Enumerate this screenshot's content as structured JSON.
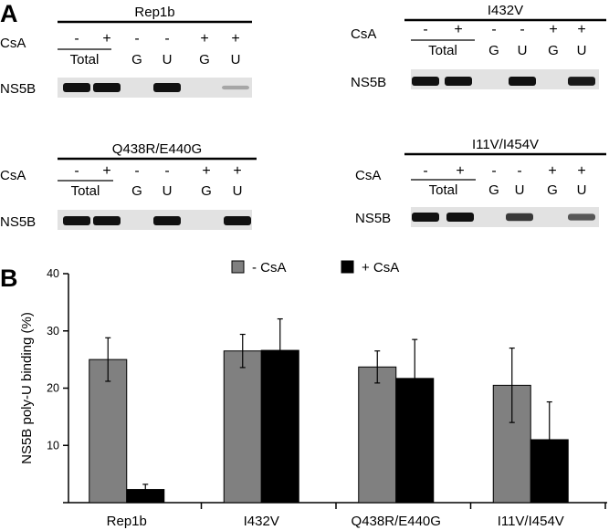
{
  "panel_a": {
    "letter": "A",
    "blots": [
      {
        "title": "Rep1b",
        "row_label": "CsA",
        "band_label": "NS5B",
        "total_label": "Total",
        "signs": [
          "-",
          "+",
          "-",
          "-",
          "+",
          "+"
        ],
        "lanes": [
          "",
          "",
          "G",
          "U",
          "G",
          "U"
        ],
        "bands": [
          1,
          1,
          0,
          1,
          0,
          0.05
        ]
      },
      {
        "title": "I432V",
        "row_label": "CsA",
        "band_label": "NS5B",
        "total_label": "Total",
        "signs": [
          "-",
          "+",
          "-",
          "-",
          "+",
          "+"
        ],
        "lanes": [
          "",
          "",
          "G",
          "U",
          "G",
          "U"
        ],
        "bands": [
          1,
          1,
          0,
          1,
          0,
          0.95
        ]
      },
      {
        "title": "Q438R/E440G",
        "row_label": "CsA",
        "band_label": "NS5B",
        "total_label": "Total",
        "signs": [
          "-",
          "+",
          "-",
          "-",
          "+",
          "+"
        ],
        "lanes": [
          "",
          "",
          "G",
          "U",
          "G",
          "U"
        ],
        "bands": [
          1,
          1,
          0,
          1,
          0,
          1
        ]
      },
      {
        "title": "I11V/I454V",
        "row_label": "CsA",
        "band_label": "NS5B",
        "total_label": "Total",
        "signs": [
          "-",
          "+",
          "-",
          "-",
          "+",
          "+"
        ],
        "lanes": [
          "",
          "",
          "G",
          "U",
          "G",
          "U"
        ],
        "bands": [
          1,
          1,
          0,
          0.75,
          0,
          0.55
        ]
      }
    ]
  },
  "panel_b": {
    "letter": "B"
  },
  "chart_data": {
    "type": "bar",
    "title": "",
    "xlabel": "",
    "ylabel": "NS5B poly-U binding (%)",
    "ylim": [
      0,
      40
    ],
    "yticks": [
      10,
      20,
      30,
      40
    ],
    "categories": [
      "Rep1b",
      "I432V",
      "Q438R/E440G",
      "I11V/I454V"
    ],
    "series": [
      {
        "name": "- CsA",
        "color": "#808080",
        "values": [
          25.0,
          26.5,
          23.7,
          20.5
        ],
        "errors": [
          3.8,
          2.9,
          2.8,
          6.5
        ]
      },
      {
        "name": "+ CsA",
        "color": "#000000",
        "values": [
          2.3,
          26.6,
          21.7,
          11.0
        ],
        "errors": [
          0.9,
          5.5,
          6.8,
          6.6
        ]
      }
    ],
    "legend": "top-center",
    "grid": false
  }
}
